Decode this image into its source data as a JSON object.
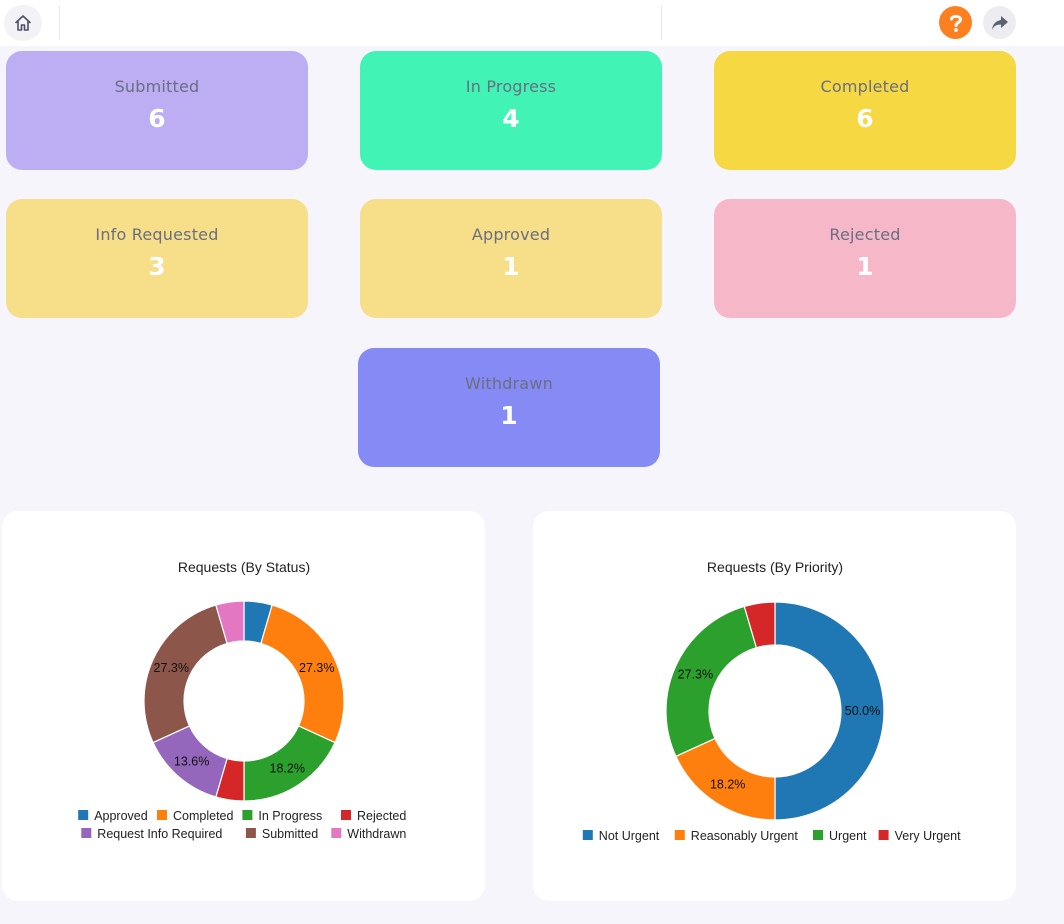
{
  "toolbar": {
    "home_icon": "home-icon",
    "help_icon": "question-icon",
    "share_icon": "share-arrow-icon",
    "help_color": "#fd7f1f"
  },
  "cards": [
    {
      "label": "Submitted",
      "count": "6",
      "color": "#bdaef4"
    },
    {
      "label": "In Progress",
      "count": "4",
      "color": "#41f4b6"
    },
    {
      "label": "Completed",
      "count": "6",
      "color": "#f5d842"
    },
    {
      "label": "Info Requested",
      "count": "3",
      "color": "#f6df88"
    },
    {
      "label": "Approved",
      "count": "1",
      "color": "#f6df88"
    },
    {
      "label": "Rejected",
      "count": "1",
      "color": "#f6b8c8"
    },
    {
      "label": "Withdrawn",
      "count": "1",
      "color": "#858af4"
    }
  ],
  "chart_data": [
    {
      "type": "pie",
      "variant": "donut",
      "title": "Requests (By Status)",
      "categories": [
        "Approved",
        "Completed",
        "In Progress",
        "Rejected",
        "Request Info Required",
        "Submitted",
        "Withdrawn"
      ],
      "values": [
        1,
        6,
        4,
        1,
        3,
        6,
        1
      ],
      "colors": [
        "#1f77b4",
        "#ff7f0e",
        "#2ca02c",
        "#d62728",
        "#9467bd",
        "#8c564b",
        "#e377c2"
      ],
      "data_labels": {
        "Completed": "27.3%",
        "Submitted": "27.3%",
        "In Progress": "18.2%",
        "Request Info Required": "13.6%"
      },
      "legend": "bottom"
    },
    {
      "type": "pie",
      "variant": "donut",
      "title": "Requests (By Priority)",
      "categories": [
        "Not Urgent",
        "Reasonably Urgent",
        "Urgent",
        "Very Urgent"
      ],
      "values": [
        11,
        4,
        6,
        1
      ],
      "colors": [
        "#1f77b4",
        "#ff7f0e",
        "#2ca02c",
        "#d62728"
      ],
      "data_labels": {
        "Not Urgent": "50.0%",
        "Urgent": "27.3%",
        "Reasonably Urgent": "18.2%"
      },
      "legend": "bottom"
    }
  ]
}
